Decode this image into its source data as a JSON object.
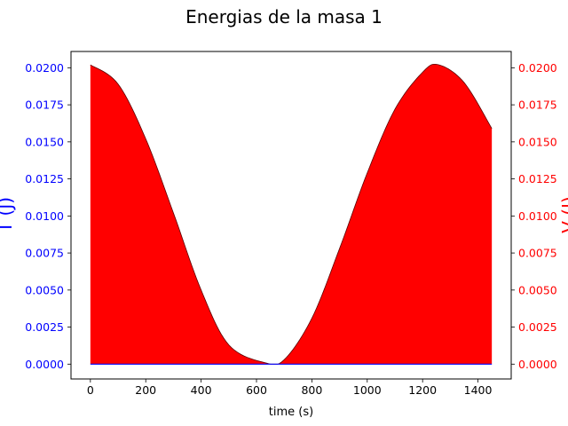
{
  "chart_data": {
    "type": "area",
    "title": "Energias de la masa 1",
    "xlabel": "time (s)",
    "ylabel_left": "T (J)",
    "ylabel_right": "V (J)",
    "xlim": [
      -70,
      1520
    ],
    "ylim_left": [
      -0.001,
      0.0211
    ],
    "ylim_right": [
      -0.001,
      0.0211
    ],
    "x_ticks": [
      0,
      200,
      400,
      600,
      800,
      1000,
      1200,
      1400
    ],
    "x_tick_labels": [
      "0",
      "200",
      "400",
      "600",
      "800",
      "1000",
      "1200",
      "1400"
    ],
    "y_ticks": [
      0.0,
      0.0025,
      0.005,
      0.0075,
      0.01,
      0.0125,
      0.015,
      0.0175,
      0.02
    ],
    "y_tick_labels": [
      "0.0000",
      "0.0025",
      "0.0050",
      "0.0075",
      "0.0100",
      "0.0125",
      "0.0150",
      "0.0175",
      "0.0200"
    ],
    "colors": {
      "left_axis": "#0000ff",
      "right_axis": "#ff0000",
      "fill": "#ff0000"
    },
    "series": [
      {
        "name": "T",
        "axis": "left",
        "color": "#0000ff",
        "x": [
          0,
          1450
        ],
        "y": [
          0.0,
          0.0
        ]
      },
      {
        "name": "V",
        "axis": "right",
        "color": "#ff0000",
        "x": [
          0,
          100,
          200,
          300,
          400,
          500,
          630,
          700,
          800,
          900,
          1000,
          1100,
          1200,
          1258,
          1350,
          1450
        ],
        "y": [
          0.0202,
          0.0189,
          0.0152,
          0.0102,
          0.005,
          0.0013,
          0.0001,
          0.0003,
          0.0031,
          0.0078,
          0.0129,
          0.0172,
          0.0197,
          0.0202,
          0.019,
          0.0159
        ]
      }
    ]
  }
}
